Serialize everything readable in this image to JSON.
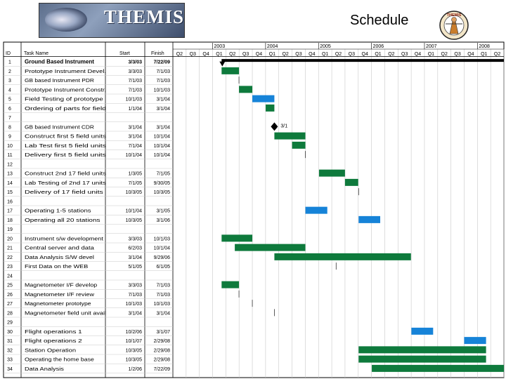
{
  "banner": {
    "title": "THEMIS"
  },
  "page_title": "Schedule",
  "logo": {
    "icon": "themis-mission-logo",
    "text": "THEMIS"
  },
  "colors": {
    "critical": "#1683d8",
    "task": "#0e7a3c",
    "summary": "#000000",
    "grid": "#c8c8c8"
  },
  "chart_data": {
    "type": "gantt",
    "columns": [
      "ID",
      "Task Name",
      "Start",
      "Finish"
    ],
    "quarters": [
      "Q2",
      "Q3",
      "Q4",
      "Q1",
      "Q2",
      "Q3",
      "Q4",
      "Q1",
      "Q2",
      "Q3",
      "Q4",
      "Q1",
      "Q2",
      "Q3",
      "Q4",
      "Q1",
      "Q2",
      "Q3",
      "Q4",
      "Q1",
      "Q2",
      "Q3",
      "Q4",
      "Q1",
      "Q2"
    ],
    "years": [
      "2003",
      "2004",
      "2005",
      "2006",
      "2007",
      "2008"
    ],
    "x_range": [
      "2002-04-01",
      "2008-07-01"
    ],
    "rows": [
      {
        "id": "1",
        "name": "Ground Based Instrument",
        "start": "3/3/03",
        "finish": "7/22/09",
        "bold": true,
        "kind": "summary",
        "s": "2003-03-03",
        "f": "2009-07-22"
      },
      {
        "id": "2",
        "name": "Prototype Instrument Devel.",
        "start": "3/3/03",
        "finish": "7/1/03",
        "kind": "task",
        "s": "2003-03-03",
        "f": "2003-07-01"
      },
      {
        "id": "3",
        "name": "GB based Instrument PDR",
        "start": "7/1/03",
        "finish": "7/1/03",
        "kind": "milestone",
        "s": "2003-07-01",
        "f": "2003-07-01"
      },
      {
        "id": "4",
        "name": "Prototype Instrument Constr.",
        "start": "7/1/03",
        "finish": "10/1/03",
        "kind": "task",
        "s": "2003-07-01",
        "f": "2003-10-01"
      },
      {
        "id": "5",
        "name": "Field Testing of prototype",
        "start": "10/1/03",
        "finish": "3/1/04",
        "kind": "critical",
        "s": "2003-10-01",
        "f": "2004-03-01"
      },
      {
        "id": "6",
        "name": "Ordering of parts for field",
        "start": "1/1/04",
        "finish": "3/1/04",
        "kind": "task",
        "s": "2004-01-01",
        "f": "2004-03-01"
      },
      {
        "id": "7",
        "name": "",
        "start": "",
        "finish": "",
        "kind": "none"
      },
      {
        "id": "8",
        "name": "GB based Instrument CDR",
        "start": "3/1/04",
        "finish": "3/1/04",
        "kind": "diamond",
        "label": "3/1",
        "s": "2004-03-01",
        "f": "2004-03-01"
      },
      {
        "id": "9",
        "name": "Construct first 5 field units",
        "start": "3/1/04",
        "finish": "10/1/04",
        "kind": "task",
        "s": "2004-03-01",
        "f": "2004-10-01"
      },
      {
        "id": "10",
        "name": "Lab Test first 5 field units",
        "start": "7/1/04",
        "finish": "10/1/04",
        "kind": "task",
        "s": "2004-07-01",
        "f": "2004-10-01"
      },
      {
        "id": "11",
        "name": "Delivery first 5 field units",
        "start": "10/1/04",
        "finish": "10/1/04",
        "kind": "milestone",
        "s": "2004-10-01",
        "f": "2004-10-01"
      },
      {
        "id": "12",
        "name": "",
        "start": "",
        "finish": "",
        "kind": "none"
      },
      {
        "id": "13",
        "name": "Construct 2nd 17 field units",
        "start": "1/3/05",
        "finish": "7/1/05",
        "kind": "task",
        "s": "2005-01-03",
        "f": "2005-07-01"
      },
      {
        "id": "14",
        "name": "Lab Testing of 2nd 17 units",
        "start": "7/1/05",
        "finish": "9/30/05",
        "kind": "task",
        "s": "2005-07-01",
        "f": "2005-09-30"
      },
      {
        "id": "15",
        "name": "Delivery of 17 field units",
        "start": "10/3/05",
        "finish": "10/3/05",
        "kind": "milestone",
        "s": "2005-10-03",
        "f": "2005-10-03"
      },
      {
        "id": "16",
        "name": "",
        "start": "",
        "finish": "",
        "kind": "none"
      },
      {
        "id": "17",
        "name": "Operating 1-5 stations",
        "start": "10/1/04",
        "finish": "3/1/05",
        "kind": "critical",
        "s": "2004-10-01",
        "f": "2005-03-01"
      },
      {
        "id": "18",
        "name": "Operating all 20 stations",
        "start": "10/3/05",
        "finish": "3/1/06",
        "kind": "critical",
        "s": "2005-10-03",
        "f": "2006-03-01"
      },
      {
        "id": "19",
        "name": "",
        "start": "",
        "finish": "",
        "kind": "none"
      },
      {
        "id": "20",
        "name": "Instrument s/w development",
        "start": "3/3/03",
        "finish": "10/1/03",
        "kind": "task",
        "s": "2003-03-03",
        "f": "2003-10-01"
      },
      {
        "id": "21",
        "name": "Central server and data",
        "start": "6/2/03",
        "finish": "10/1/04",
        "kind": "task",
        "s": "2003-06-02",
        "f": "2004-10-01"
      },
      {
        "id": "22",
        "name": "Data Analysis S/W devel",
        "start": "3/1/04",
        "finish": "9/29/06",
        "kind": "task",
        "s": "2004-03-01",
        "f": "2006-09-29"
      },
      {
        "id": "23",
        "name": "First Data on the WEB",
        "start": "5/1/05",
        "finish": "6/1/05",
        "kind": "milestone",
        "s": "2005-05-01",
        "f": "2005-06-01"
      },
      {
        "id": "24",
        "name": "",
        "start": "",
        "finish": "",
        "kind": "none"
      },
      {
        "id": "25",
        "name": "Magnetometer I/F develop",
        "start": "3/3/03",
        "finish": "7/1/03",
        "kind": "task",
        "s": "2003-03-03",
        "f": "2003-07-01"
      },
      {
        "id": "26",
        "name": "Magnetometer I/F review",
        "start": "7/1/03",
        "finish": "7/1/03",
        "kind": "milestone",
        "s": "2003-07-01",
        "f": "2003-07-01"
      },
      {
        "id": "27",
        "name": "Magnetometer prototype",
        "start": "10/1/03",
        "finish": "10/1/03",
        "kind": "milestone",
        "s": "2003-10-01",
        "f": "2003-10-01"
      },
      {
        "id": "28",
        "name": "Magnetometer field unit avail",
        "start": "3/1/04",
        "finish": "3/1/04",
        "kind": "milestone",
        "s": "2004-03-01",
        "f": "2004-03-01"
      },
      {
        "id": "29",
        "name": "",
        "start": "",
        "finish": "",
        "kind": "none"
      },
      {
        "id": "30",
        "name": "Flight operations 1",
        "start": "10/2/06",
        "finish": "3/1/07",
        "kind": "critical",
        "s": "2006-10-02",
        "f": "2007-03-01"
      },
      {
        "id": "31",
        "name": "Flight operations 2",
        "start": "10/1/07",
        "finish": "2/29/08",
        "kind": "critical",
        "s": "2007-10-01",
        "f": "2008-02-29"
      },
      {
        "id": "32",
        "name": "Station Operation",
        "start": "10/3/05",
        "finish": "2/29/08",
        "kind": "task",
        "s": "2005-10-03",
        "f": "2008-02-29"
      },
      {
        "id": "33",
        "name": "Operating the home base",
        "start": "10/3/05",
        "finish": "2/29/08",
        "kind": "task",
        "s": "2005-10-03",
        "f": "2008-02-29"
      },
      {
        "id": "34",
        "name": "Data Analysis",
        "start": "1/2/06",
        "finish": "7/22/09",
        "kind": "task",
        "s": "2006-01-02",
        "f": "2009-07-22"
      }
    ]
  }
}
